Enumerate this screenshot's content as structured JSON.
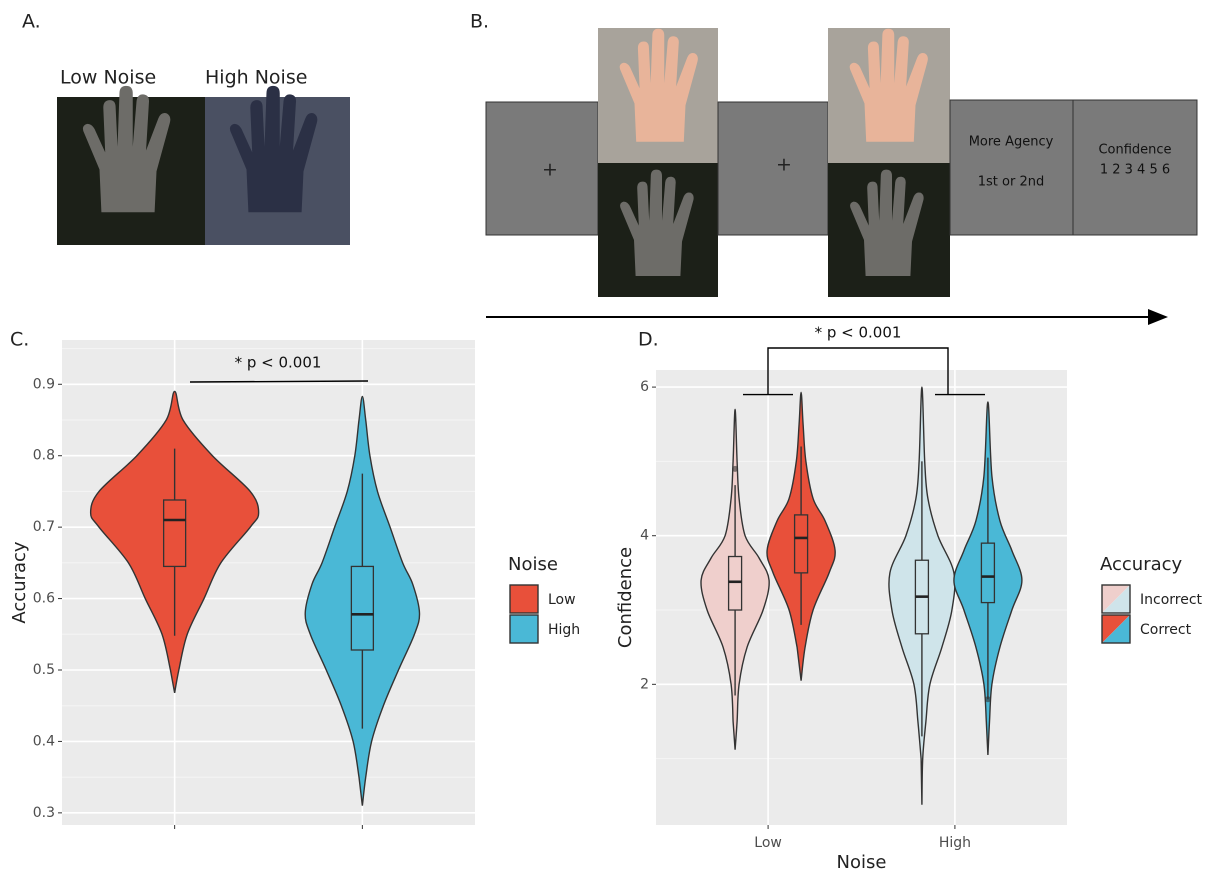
{
  "panels": {
    "a": {
      "label": "A.",
      "images": [
        "Low Noise",
        "High Noise"
      ]
    },
    "b": {
      "label": "B.",
      "fixation": [
        "+",
        "+"
      ],
      "question": [
        "More Agency",
        "1st or 2nd"
      ],
      "confidence": [
        "Confidence",
        "1 2 3 4 5 6"
      ]
    },
    "c": {
      "label": "C."
    },
    "d": {
      "label": "D."
    }
  },
  "chart_data": [
    {
      "type": "violin",
      "annotation": "* p < 0.001",
      "ylabel": "Accuracy",
      "legend_title": "Noise",
      "categories": [
        null,
        null
      ],
      "ylim": [
        0.283,
        0.962
      ],
      "yticks": [
        0.3,
        0.4,
        0.5,
        0.6,
        0.7,
        0.8,
        0.9
      ],
      "minor_yticks": [
        0.35,
        0.45,
        0.55,
        0.65,
        0.75,
        0.85,
        0.95
      ],
      "grid": true,
      "series": [
        {
          "name": "Low",
          "colors": [
            "#e8503a",
            null
          ],
          "violins": [
            {
              "y": [
                0.468,
                0.5,
                0.55,
                0.6,
                0.65,
                0.7,
                0.72,
                0.75,
                0.8,
                0.85,
                0.89
              ],
              "density": [
                0,
                0.05,
                0.15,
                0.35,
                0.55,
                0.9,
                1,
                0.9,
                0.45,
                0.1,
                0
              ],
              "box": [
                0.548,
                0.645,
                0.71,
                0.738,
                0.81
              ],
              "outliers": []
            },
            null
          ]
        },
        {
          "name": "High",
          "colors": [
            null,
            "#4ab8d6"
          ],
          "violins": [
            null,
            {
              "y": [
                0.31,
                0.35,
                0.4,
                0.45,
                0.5,
                0.55,
                0.58,
                0.62,
                0.65,
                0.7,
                0.75,
                0.8,
                0.85,
                0.883
              ],
              "density": [
                0,
                0.04,
                0.11,
                0.25,
                0.43,
                0.62,
                0.68,
                0.6,
                0.48,
                0.33,
                0.18,
                0.09,
                0.04,
                0
              ],
              "box": [
                0.418,
                0.528,
                0.578,
                0.645,
                0.775
              ],
              "outliers": []
            }
          ]
        }
      ]
    },
    {
      "type": "violin",
      "annotation": "* p < 0.001",
      "ylabel": "Confidence",
      "xlabel": "Noise",
      "legend_title": "Accuracy",
      "categories": [
        "Low",
        "High"
      ],
      "ylim": [
        0.107,
        6.23
      ],
      "yticks": [
        2,
        4,
        6
      ],
      "minor_yticks": [
        1,
        3,
        5
      ],
      "grid": true,
      "series": [
        {
          "name": "Incorrect",
          "colors": [
            "#efcfcc",
            "#cfe4ea"
          ],
          "violins": [
            {
              "y": [
                1.12,
                1.5,
                2,
                2.5,
                3,
                3.4,
                3.7,
                4,
                4.5,
                5,
                5.7
              ],
              "density": [
                0,
                0.05,
                0.1,
                0.3,
                0.7,
                0.85,
                0.6,
                0.25,
                0.1,
                0.05,
                0
              ],
              "box": [
                1.85,
                3.0,
                3.38,
                3.72,
                4.68
              ],
              "outliers": [
                4.9
              ]
            },
            {
              "y": [
                0.38,
                1,
                1.5,
                2,
                2.5,
                3,
                3.5,
                4,
                4.5,
                5,
                6.0
              ],
              "density": [
                0,
                0.02,
                0.1,
                0.2,
                0.5,
                0.75,
                0.8,
                0.4,
                0.15,
                0.07,
                0
              ],
              "box": [
                1.3,
                2.68,
                3.18,
                3.67,
                5.0
              ],
              "outliers": []
            }
          ]
        },
        {
          "name": "Correct",
          "colors": [
            "#e8503a",
            "#4ab8d6"
          ],
          "violins": [
            {
              "y": [
                2.05,
                2.5,
                3,
                3.5,
                3.8,
                4.2,
                4.5,
                5,
                5.5,
                5.93
              ],
              "density": [
                0,
                0.1,
                0.3,
                0.7,
                0.85,
                0.6,
                0.3,
                0.12,
                0.05,
                0
              ],
              "box": [
                2.8,
                3.5,
                3.97,
                4.28,
                5.2
              ],
              "outliers": []
            },
            {
              "y": [
                1.05,
                1.5,
                2,
                2.5,
                3,
                3.4,
                3.8,
                4.2,
                4.8,
                5.8
              ],
              "density": [
                0,
                0.04,
                0.1,
                0.3,
                0.6,
                0.85,
                0.6,
                0.3,
                0.1,
                0
              ],
              "box": [
                1.8,
                3.1,
                3.45,
                3.9,
                5.05
              ],
              "outliers": [
                1.8
              ]
            }
          ]
        }
      ]
    }
  ]
}
